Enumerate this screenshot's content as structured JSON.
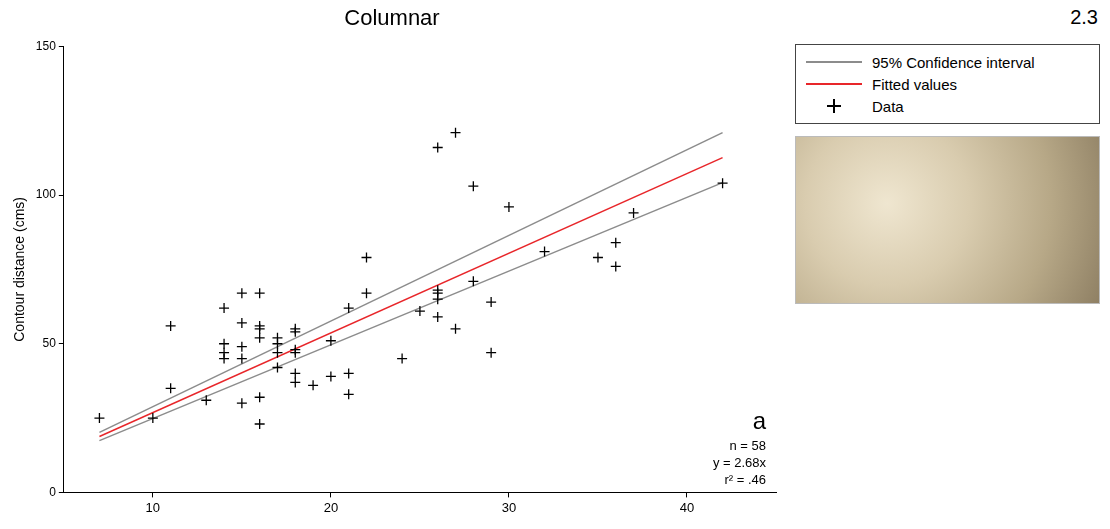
{
  "chart_data": {
    "type": "scatter",
    "title": "Columnar",
    "figure_number": "2.3",
    "y_label": "Contour distance (cms)",
    "xlim": [
      5,
      45
    ],
    "xticks": [
      10,
      20,
      30,
      40
    ],
    "ylim": [
      0,
      150
    ],
    "yticks": [
      0,
      50,
      100,
      150
    ],
    "grid": false,
    "legend": "right",
    "series": [
      {
        "name": "95% Confidence interval",
        "type": "line",
        "color": "#8c8c8c",
        "x": [
          7,
          42,
          null,
          7,
          42
        ],
        "values": [
          20.2,
          121,
          null,
          17.4,
          104.2
        ]
      },
      {
        "name": "Fitted values",
        "type": "line",
        "color": "#e8262a",
        "x": [
          7,
          42
        ],
        "values": [
          18.8,
          112.6
        ]
      },
      {
        "name": "Data",
        "type": "scatter",
        "color": "#000000",
        "marker": "plus",
        "x": [
          7,
          10,
          11,
          11,
          13,
          14,
          14,
          14,
          14,
          15,
          15,
          15,
          15,
          15,
          16,
          16,
          16,
          16,
          16,
          16,
          17,
          17,
          17,
          17,
          18,
          18,
          18,
          18,
          18,
          18,
          19,
          20,
          20,
          21,
          21,
          21,
          22,
          22,
          24,
          25,
          26,
          26,
          26,
          26,
          26,
          27,
          27,
          28,
          28,
          29,
          29,
          30,
          32,
          35,
          36,
          36,
          37,
          42
        ],
        "values": [
          25,
          25,
          56,
          35,
          31,
          62,
          50,
          47,
          45,
          67,
          57,
          49,
          45,
          30,
          67,
          56,
          55,
          52,
          32,
          23,
          52,
          50,
          47,
          42,
          55,
          54,
          48,
          47,
          40,
          37,
          36,
          51,
          39,
          62,
          40,
          33,
          79,
          67,
          45,
          61,
          116,
          68,
          67,
          65,
          59,
          121,
          55,
          103,
          71,
          64,
          47,
          96,
          81,
          79,
          84,
          76,
          94,
          104
        ]
      }
    ],
    "annotations": [
      "a",
      "n = 58",
      "y = 2.68x",
      "r² = .46"
    ]
  }
}
